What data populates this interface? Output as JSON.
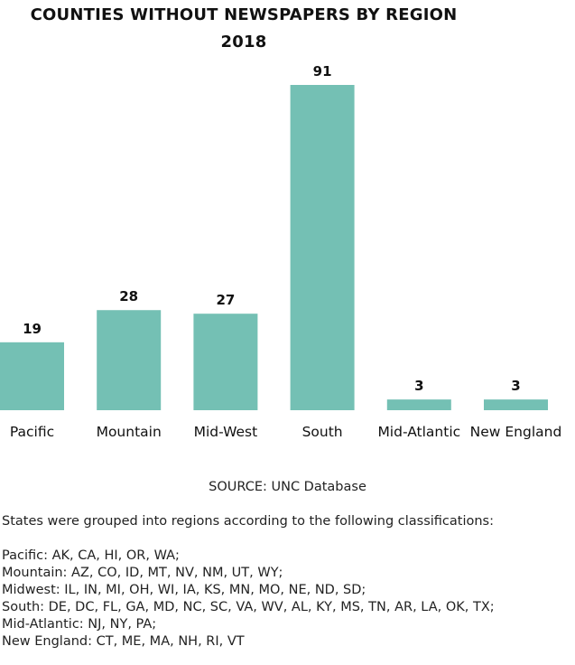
{
  "chart_data": {
    "type": "bar",
    "title": "COUNTIES WITHOUT NEWSPAPERS BY REGION",
    "subtitle": "2018",
    "categories": [
      "Pacific",
      "Mountain",
      "Mid-West",
      "South",
      "Mid-Atlantic",
      "New England"
    ],
    "values": [
      19,
      28,
      27,
      91,
      3,
      3
    ],
    "xlabel": "",
    "ylabel": "",
    "ylim": [
      0,
      91
    ],
    "grid": false,
    "bar_color": "#74c0b4"
  },
  "source": "SOURCE: UNC Database",
  "notes": {
    "intro": "States were grouped into regions according to the following classifications:",
    "lines": [
      "Pacific: AK, CA, HI, OR, WA;",
      "Mountain: AZ, CO, ID, MT, NV, NM, UT, WY;",
      "Midwest: IL, IN, MI, OH, WI, IA, KS, MN, MO, NE, ND, SD;",
      "South: DE, DC, FL, GA, MD, NC, SC, VA, WV, AL, KY, MS, TN, AR, LA, OK, TX;",
      "Mid-Atlantic: NJ, NY, PA;",
      "New England: CT, ME, MA, NH, RI, VT"
    ]
  }
}
